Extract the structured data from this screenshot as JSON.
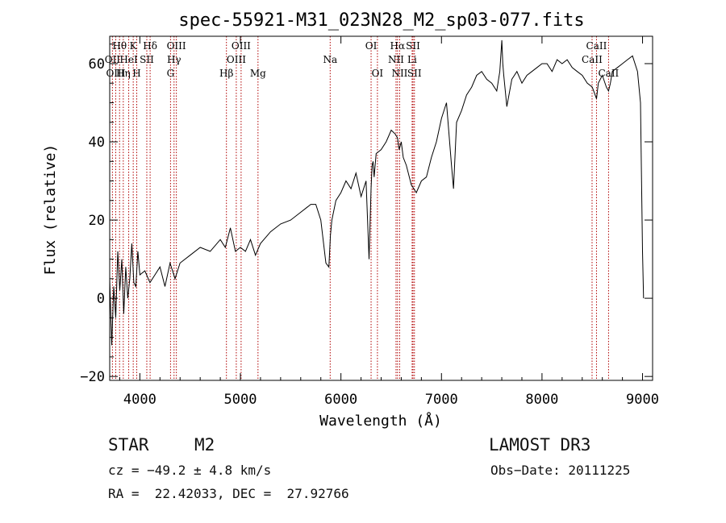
{
  "chart_data": {
    "type": "line",
    "title": "spec-55921-M31_023N28_M2_sp03-077.fits",
    "xlabel": "Wavelength (Å)",
    "ylabel": "Flux (relative)",
    "xlim": [
      3700,
      9100
    ],
    "ylim": [
      -21,
      67
    ],
    "xticks": [
      4000,
      5000,
      6000,
      7000,
      8000,
      9000
    ],
    "yticks": [
      -20,
      0,
      20,
      40,
      60
    ],
    "grid": false,
    "series": [
      {
        "name": "spectrum",
        "x": [
          3700,
          3720,
          3740,
          3760,
          3780,
          3800,
          3820,
          3840,
          3860,
          3880,
          3900,
          3920,
          3940,
          3960,
          3980,
          4000,
          4050,
          4100,
          4150,
          4200,
          4250,
          4300,
          4350,
          4400,
          4500,
          4600,
          4700,
          4800,
          4850,
          4880,
          4900,
          4950,
          5000,
          5050,
          5100,
          5150,
          5200,
          5300,
          5400,
          5500,
          5600,
          5700,
          5750,
          5800,
          5850,
          5880,
          5895,
          5910,
          5950,
          6000,
          6050,
          6100,
          6150,
          6200,
          6250,
          6280,
          6300,
          6310,
          6320,
          6330,
          6350,
          6400,
          6450,
          6500,
          6540,
          6563,
          6580,
          6600,
          6620,
          6650,
          6700,
          6750,
          6800,
          6850,
          6900,
          6950,
          7000,
          7050,
          7100,
          7120,
          7150,
          7200,
          7250,
          7300,
          7350,
          7400,
          7450,
          7500,
          7550,
          7580,
          7600,
          7610,
          7620,
          7650,
          7700,
          7750,
          7800,
          7850,
          7900,
          7950,
          8000,
          8050,
          8100,
          8150,
          8200,
          8250,
          8300,
          8350,
          8400,
          8450,
          8500,
          8542,
          8560,
          8600,
          8640,
          8662,
          8680,
          8700,
          8750,
          8800,
          8850,
          8900,
          8950,
          8980,
          8990,
          9000,
          9010
        ],
        "values": [
          5,
          -12,
          3,
          -5,
          12,
          2,
          10,
          -4,
          8,
          0,
          5,
          14,
          4,
          3,
          12,
          6,
          7,
          4,
          6,
          8,
          3,
          9,
          5,
          9,
          11,
          13,
          12,
          15,
          13,
          16,
          18,
          12,
          13,
          12,
          15,
          11,
          14,
          17,
          19,
          20,
          22,
          24,
          24,
          20,
          9,
          8,
          16,
          20,
          25,
          27,
          30,
          28,
          32,
          26,
          30,
          10,
          28,
          34,
          35,
          31,
          37,
          38,
          40,
          43,
          42,
          41,
          38,
          40,
          36,
          34,
          29,
          27,
          30,
          31,
          36,
          40,
          46,
          50,
          34,
          28,
          45,
          48,
          52,
          54,
          57,
          58,
          56,
          55,
          53,
          58,
          66,
          60,
          57,
          49,
          56,
          58,
          55,
          57,
          58,
          59,
          60,
          60,
          58,
          61,
          60,
          61,
          59,
          58,
          57,
          55,
          54,
          51,
          55,
          57,
          54,
          53,
          55,
          58,
          59,
          60,
          61,
          62,
          58,
          50,
          30,
          12,
          0
        ]
      }
    ],
    "line_markers": [
      {
        "label": "Hθ",
        "x": 3798,
        "row": 0
      },
      {
        "label": "OII",
        "x": 3727,
        "row": 1
      },
      {
        "label": "OIII",
        "x": 3760,
        "row": 2
      },
      {
        "label": "K",
        "x": 3934,
        "row": 0
      },
      {
        "label": "HeI",
        "x": 3889,
        "row": 1
      },
      {
        "label": "Hη",
        "x": 3835,
        "row": 2
      },
      {
        "label": "H",
        "x": 3969,
        "row": 2
      },
      {
        "label": "SII",
        "x": 4069,
        "row": 1
      },
      {
        "label": "Hδ",
        "x": 4102,
        "row": 0
      },
      {
        "label": "OIII",
        "x": 4363,
        "row": 0
      },
      {
        "label": "Hγ",
        "x": 4340,
        "row": 1
      },
      {
        "label": "G",
        "x": 4305,
        "row": 2
      },
      {
        "label": "Hβ",
        "x": 4861,
        "row": 2
      },
      {
        "label": "OIII",
        "x": 5007,
        "row": 0
      },
      {
        "label": "OIII",
        "x": 4959,
        "row": 1
      },
      {
        "label": "Mg",
        "x": 5175,
        "row": 2
      },
      {
        "label": "Na",
        "x": 5893,
        "row": 1
      },
      {
        "label": "OI",
        "x": 6300,
        "row": 0
      },
      {
        "label": "OI",
        "x": 6363,
        "row": 2
      },
      {
        "label": "Hα",
        "x": 6563,
        "row": 0
      },
      {
        "label": "NII",
        "x": 6548,
        "row": 1
      },
      {
        "label": "NII",
        "x": 6584,
        "row": 2
      },
      {
        "label": "SII",
        "x": 6717,
        "row": 0
      },
      {
        "label": "Li",
        "x": 6708,
        "row": 1
      },
      {
        "label": "SII",
        "x": 6731,
        "row": 2
      },
      {
        "label": "CaII",
        "x": 8542,
        "row": 0
      },
      {
        "label": "CaII",
        "x": 8498,
        "row": 1
      },
      {
        "label": "CaII",
        "x": 8662,
        "row": 2
      }
    ]
  },
  "footer": {
    "object_class": "STAR",
    "subclass": "M2",
    "survey": "LAMOST DR3",
    "cz": "cz = −49.2 ± 4.8 km/s",
    "obs_date": "Obs−Date: 20111225",
    "coords": "RA =  22.42033, DEC =  27.92766"
  },
  "colors": {
    "line": "#000000",
    "marker": "#b00000"
  }
}
